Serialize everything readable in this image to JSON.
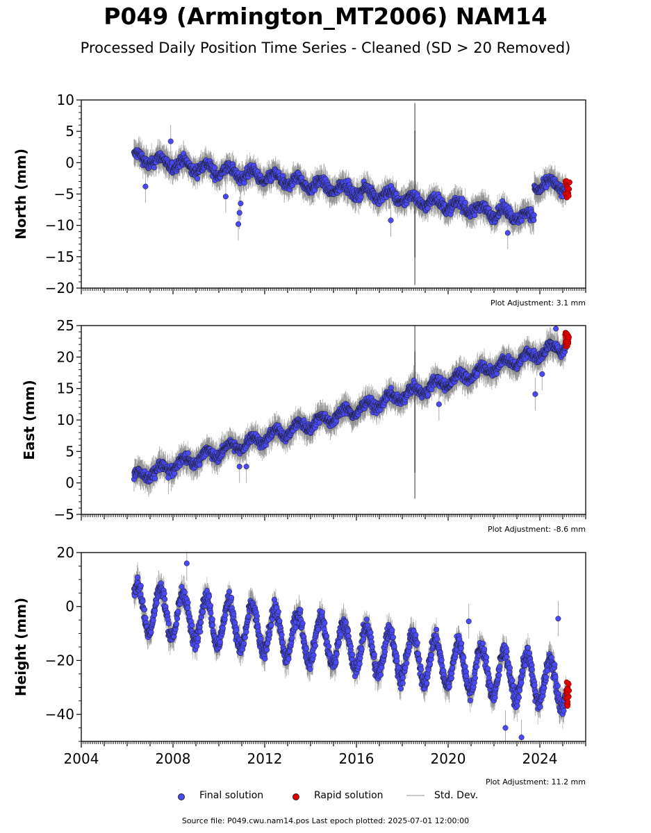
{
  "title": "P049 (Armington_MT2006) NAM14",
  "subtitle": "Processed Daily Position Time Series - Cleaned (SD > 20 Removed)",
  "colors": {
    "final": "#4a4af5",
    "rapid": "#e00000",
    "stddev": "#c8c8c8",
    "marker_edge": "#1a1a1a"
  },
  "legend": {
    "final": "Final solution",
    "rapid": "Rapid solution",
    "stddev": "Std. Dev."
  },
  "source": "Source file: P049.cwu.nam14.pos  Last epoch plotted: 2025-07-01 12:00:00",
  "chart_data": [
    {
      "type": "scatter",
      "component": "north",
      "ylabel": "North (mm)",
      "xlim": [
        2004.0,
        2026.0
      ],
      "ylim": [
        -20,
        10
      ],
      "yticks": [
        10,
        5,
        0,
        -5,
        -10,
        -15,
        -20
      ],
      "xticks": [],
      "adjustment": "Plot Adjustment: 3.1 mm",
      "model": {
        "start": 2006.3,
        "end": 2025.45,
        "segments": [
          {
            "from": 2006.3,
            "to": 2023.75,
            "y0": 0.8,
            "slope": -0.55
          },
          {
            "from": 2023.75,
            "to": 2025.45,
            "y0": -3.6,
            "slope": 0.0
          }
        ],
        "seasonal_amp": 0.8,
        "scatter_sd": 1.0,
        "error_bar": 2.0
      },
      "rapid": {
        "from": 2025.15,
        "to": 2025.45,
        "y_min": -5.6,
        "y_max": -2.8
      },
      "spike": {
        "x": 2018.55,
        "y_min": -19.5,
        "y_max": 9.5
      },
      "outliers": [
        {
          "x": 2006.8,
          "y": -3.8
        },
        {
          "x": 2007.9,
          "y": 3.4
        },
        {
          "x": 2010.85,
          "y": -9.8
        },
        {
          "x": 2010.9,
          "y": -8.0
        },
        {
          "x": 2010.95,
          "y": -6.5
        },
        {
          "x": 2010.3,
          "y": -5.4
        },
        {
          "x": 2017.5,
          "y": -9.2
        },
        {
          "x": 2022.6,
          "y": -11.2
        }
      ]
    },
    {
      "type": "scatter",
      "component": "east",
      "ylabel": "East (mm)",
      "xlim": [
        2004.0,
        2026.0
      ],
      "ylim": [
        -5,
        25
      ],
      "yticks": [
        25,
        20,
        15,
        10,
        5,
        0,
        -5
      ],
      "xticks": [],
      "adjustment": "Plot Adjustment: -8.6 mm",
      "model": {
        "start": 2006.3,
        "end": 2025.45,
        "segments": [
          {
            "from": 2006.3,
            "to": 2025.45,
            "y0": 0.8,
            "slope": 1.12
          }
        ],
        "seasonal_amp": 0.8,
        "scatter_sd": 0.9,
        "error_bar": 2.0
      },
      "rapid": {
        "from": 2025.15,
        "to": 2025.45,
        "y_min": 21.6,
        "y_max": 23.9
      },
      "spike": {
        "x": 2018.55,
        "y_min": -2.5,
        "y_max": 25.0
      },
      "outliers": [
        {
          "x": 2007.8,
          "y": 0.8
        },
        {
          "x": 2010.9,
          "y": 2.6
        },
        {
          "x": 2011.2,
          "y": 2.6
        },
        {
          "x": 2019.6,
          "y": 12.5
        },
        {
          "x": 2023.8,
          "y": 14.1
        },
        {
          "x": 2024.1,
          "y": 17.3
        },
        {
          "x": 2024.7,
          "y": 24.5
        }
      ]
    },
    {
      "type": "scatter",
      "component": "height",
      "ylabel": "Height (mm)",
      "xlim": [
        2004.0,
        2026.0
      ],
      "ylim": [
        -50,
        20
      ],
      "yticks": [
        20,
        0,
        -20,
        -40
      ],
      "xticks": [
        2004,
        2008,
        2012,
        2016,
        2020,
        2024
      ],
      "adjustment": "Plot Adjustment: 11.2 mm",
      "model": {
        "start": 2006.3,
        "end": 2025.45,
        "segments": [
          {
            "from": 2006.3,
            "to": 2025.45,
            "y0": 0.0,
            "slope": -1.55
          }
        ],
        "seasonal_amp": 8.5,
        "scatter_sd": 3.5,
        "error_bar": 5.0
      },
      "rapid": {
        "from": 2025.15,
        "to": 2025.45,
        "y_min": -37.0,
        "y_max": -26.5
      },
      "spike": null,
      "outliers": [
        {
          "x": 2008.6,
          "y": 16.0
        },
        {
          "x": 2020.9,
          "y": -5.5
        },
        {
          "x": 2022.5,
          "y": -45.0
        },
        {
          "x": 2023.2,
          "y": -48.5
        },
        {
          "x": 2024.8,
          "y": -4.5
        }
      ]
    }
  ]
}
